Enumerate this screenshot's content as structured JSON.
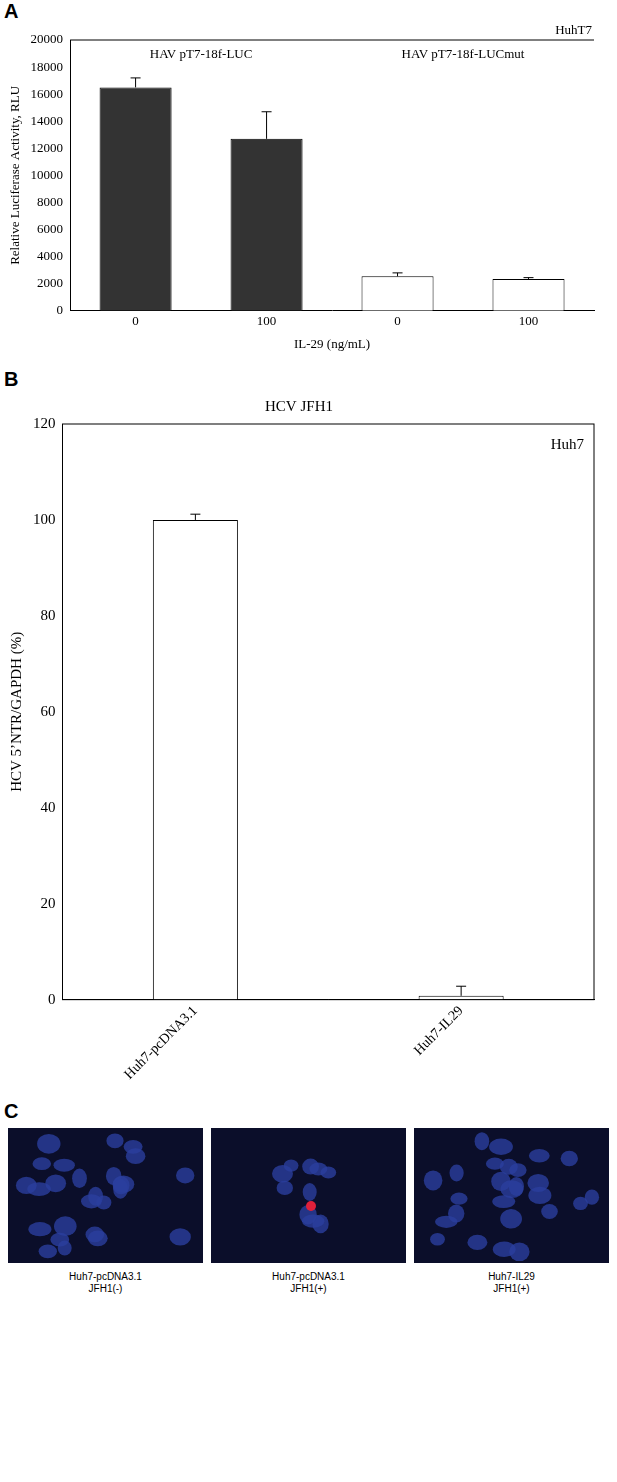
{
  "chart_data": [
    {
      "panel": "A",
      "type": "bar",
      "annotation": "HuhT7",
      "group_labels": [
        "HAV pT7-18f-LUC",
        "HAV pT7-18f-LUCmut"
      ],
      "categories": [
        "0",
        "100",
        "0",
        "100"
      ],
      "values": [
        16500,
        12700,
        2550,
        2350
      ],
      "errors": [
        700,
        2000,
        250,
        100
      ],
      "colors": [
        "#333333",
        "#333333",
        "#ffffff",
        "#ffffff"
      ],
      "x_label": "IL-29 (ng/mL)",
      "y_label": "Relative Luciferase Activity, RLU",
      "ylim": [
        0,
        20000
      ],
      "yticks": [
        0,
        2000,
        4000,
        6000,
        8000,
        10000,
        12000,
        14000,
        16000,
        18000,
        20000
      ],
      "grid": false
    },
    {
      "panel": "B",
      "type": "bar",
      "title": "HCV JFH1",
      "annotation": "Huh7",
      "categories": [
        "Huh7-pcDNA3.1",
        "Huh7-IL29"
      ],
      "values": [
        100,
        0.8
      ],
      "errors": [
        1.2,
        2
      ],
      "color": "#ffffff",
      "y_label": "HCV 5’NTR/GAPDH (%)",
      "ylim": [
        0,
        120
      ],
      "yticks": [
        0,
        20,
        40,
        60,
        80,
        100,
        120
      ],
      "grid": false
    }
  ],
  "panel_c": {
    "panel": "C",
    "images": [
      {
        "caption": [
          "Huh7-pcDNA3.1",
          "JFH1(-)"
        ]
      },
      {
        "caption": [
          "Huh7-pcDNA3.1",
          "JFH1(+)"
        ]
      },
      {
        "caption": [
          "Huh7-IL29",
          "JFH1(+)"
        ]
      }
    ]
  }
}
